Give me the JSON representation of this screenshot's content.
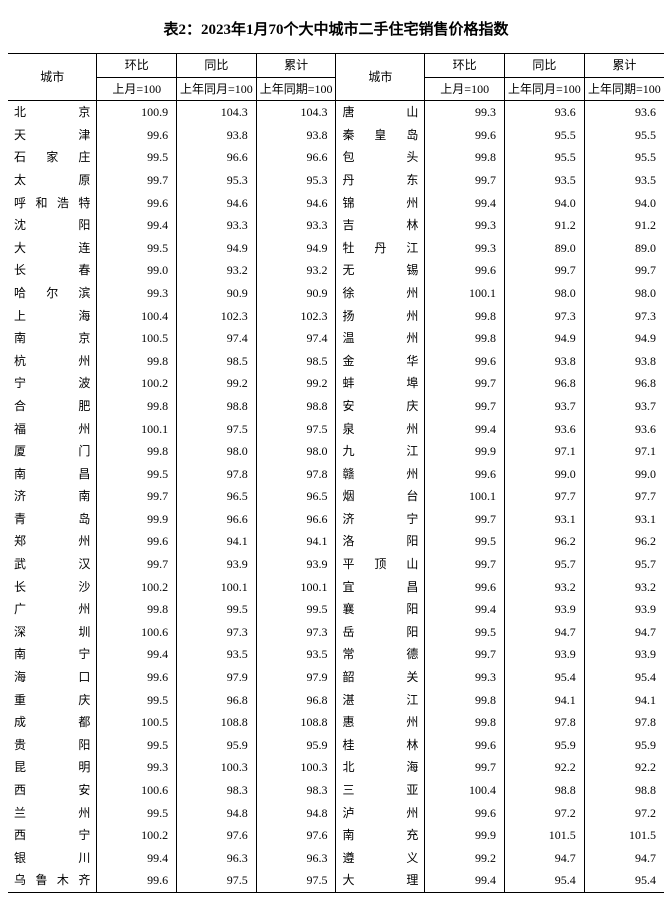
{
  "title": "表2：2023年1月70个大中城市二手住宅销售价格指数",
  "headers": {
    "city": "城市",
    "mom": "环比",
    "yoy": "同比",
    "cum": "累计",
    "mom_sub": "上月=100",
    "yoy_sub": "上年同月=100",
    "cum_sub": "上年同期=100"
  },
  "left": [
    {
      "c": "北　京",
      "m": "100.9",
      "y": "104.3",
      "u": "104.3"
    },
    {
      "c": "天　津",
      "m": "99.6",
      "y": "93.8",
      "u": "93.8"
    },
    {
      "c": "石家庄",
      "m": "99.5",
      "y": "96.6",
      "u": "96.6"
    },
    {
      "c": "太　原",
      "m": "99.7",
      "y": "95.3",
      "u": "95.3"
    },
    {
      "c": "呼和浩特",
      "m": "99.6",
      "y": "94.6",
      "u": "94.6"
    },
    {
      "c": "沈　阳",
      "m": "99.4",
      "y": "93.3",
      "u": "93.3"
    },
    {
      "c": "大　连",
      "m": "99.5",
      "y": "94.9",
      "u": "94.9"
    },
    {
      "c": "长　春",
      "m": "99.0",
      "y": "93.2",
      "u": "93.2"
    },
    {
      "c": "哈尔滨",
      "m": "99.3",
      "y": "90.9",
      "u": "90.9"
    },
    {
      "c": "上　海",
      "m": "100.4",
      "y": "102.3",
      "u": "102.3"
    },
    {
      "c": "南　京",
      "m": "100.5",
      "y": "97.4",
      "u": "97.4"
    },
    {
      "c": "杭　州",
      "m": "99.8",
      "y": "98.5",
      "u": "98.5"
    },
    {
      "c": "宁　波",
      "m": "100.2",
      "y": "99.2",
      "u": "99.2"
    },
    {
      "c": "合　肥",
      "m": "99.8",
      "y": "98.8",
      "u": "98.8"
    },
    {
      "c": "福　州",
      "m": "100.1",
      "y": "97.5",
      "u": "97.5"
    },
    {
      "c": "厦　门",
      "m": "99.8",
      "y": "98.0",
      "u": "98.0"
    },
    {
      "c": "南　昌",
      "m": "99.5",
      "y": "97.8",
      "u": "97.8"
    },
    {
      "c": "济　南",
      "m": "99.7",
      "y": "96.5",
      "u": "96.5"
    },
    {
      "c": "青　岛",
      "m": "99.9",
      "y": "96.6",
      "u": "96.6"
    },
    {
      "c": "郑　州",
      "m": "99.6",
      "y": "94.1",
      "u": "94.1"
    },
    {
      "c": "武　汉",
      "m": "99.7",
      "y": "93.9",
      "u": "93.9"
    },
    {
      "c": "长　沙",
      "m": "100.2",
      "y": "100.1",
      "u": "100.1"
    },
    {
      "c": "广　州",
      "m": "99.8",
      "y": "99.5",
      "u": "99.5"
    },
    {
      "c": "深　圳",
      "m": "100.6",
      "y": "97.3",
      "u": "97.3"
    },
    {
      "c": "南　宁",
      "m": "99.4",
      "y": "93.5",
      "u": "93.5"
    },
    {
      "c": "海　口",
      "m": "99.6",
      "y": "97.9",
      "u": "97.9"
    },
    {
      "c": "重　庆",
      "m": "99.5",
      "y": "96.8",
      "u": "96.8"
    },
    {
      "c": "成　都",
      "m": "100.5",
      "y": "108.8",
      "u": "108.8"
    },
    {
      "c": "贵　阳",
      "m": "99.5",
      "y": "95.9",
      "u": "95.9"
    },
    {
      "c": "昆　明",
      "m": "99.3",
      "y": "100.3",
      "u": "100.3"
    },
    {
      "c": "西　安",
      "m": "100.6",
      "y": "98.3",
      "u": "98.3"
    },
    {
      "c": "兰　州",
      "m": "99.5",
      "y": "94.8",
      "u": "94.8"
    },
    {
      "c": "西　宁",
      "m": "100.2",
      "y": "97.6",
      "u": "97.6"
    },
    {
      "c": "银　川",
      "m": "99.4",
      "y": "96.3",
      "u": "96.3"
    },
    {
      "c": "乌鲁木齐",
      "m": "99.6",
      "y": "97.5",
      "u": "97.5"
    }
  ],
  "right": [
    {
      "c": "唐　山",
      "m": "99.3",
      "y": "93.6",
      "u": "93.6"
    },
    {
      "c": "秦皇岛",
      "m": "99.6",
      "y": "95.5",
      "u": "95.5"
    },
    {
      "c": "包　头",
      "m": "99.8",
      "y": "95.5",
      "u": "95.5"
    },
    {
      "c": "丹　东",
      "m": "99.7",
      "y": "93.5",
      "u": "93.5"
    },
    {
      "c": "锦　州",
      "m": "99.4",
      "y": "94.0",
      "u": "94.0"
    },
    {
      "c": "吉　林",
      "m": "99.3",
      "y": "91.2",
      "u": "91.2"
    },
    {
      "c": "牡丹江",
      "m": "99.3",
      "y": "89.0",
      "u": "89.0"
    },
    {
      "c": "无　锡",
      "m": "99.6",
      "y": "99.7",
      "u": "99.7"
    },
    {
      "c": "徐　州",
      "m": "100.1",
      "y": "98.0",
      "u": "98.0"
    },
    {
      "c": "扬　州",
      "m": "99.8",
      "y": "97.3",
      "u": "97.3"
    },
    {
      "c": "温　州",
      "m": "99.8",
      "y": "94.9",
      "u": "94.9"
    },
    {
      "c": "金　华",
      "m": "99.6",
      "y": "93.8",
      "u": "93.8"
    },
    {
      "c": "蚌　埠",
      "m": "99.7",
      "y": "96.8",
      "u": "96.8"
    },
    {
      "c": "安　庆",
      "m": "99.7",
      "y": "93.7",
      "u": "93.7"
    },
    {
      "c": "泉　州",
      "m": "99.4",
      "y": "93.6",
      "u": "93.6"
    },
    {
      "c": "九　江",
      "m": "99.9",
      "y": "97.1",
      "u": "97.1"
    },
    {
      "c": "赣　州",
      "m": "99.6",
      "y": "99.0",
      "u": "99.0"
    },
    {
      "c": "烟　台",
      "m": "100.1",
      "y": "97.7",
      "u": "97.7"
    },
    {
      "c": "济　宁",
      "m": "99.7",
      "y": "93.1",
      "u": "93.1"
    },
    {
      "c": "洛　阳",
      "m": "99.5",
      "y": "96.2",
      "u": "96.2"
    },
    {
      "c": "平顶山",
      "m": "99.7",
      "y": "95.7",
      "u": "95.7"
    },
    {
      "c": "宜　昌",
      "m": "99.6",
      "y": "93.2",
      "u": "93.2"
    },
    {
      "c": "襄　阳",
      "m": "99.4",
      "y": "93.9",
      "u": "93.9"
    },
    {
      "c": "岳　阳",
      "m": "99.5",
      "y": "94.7",
      "u": "94.7"
    },
    {
      "c": "常　德",
      "m": "99.7",
      "y": "93.9",
      "u": "93.9"
    },
    {
      "c": "韶　关",
      "m": "99.3",
      "y": "95.4",
      "u": "95.4"
    },
    {
      "c": "湛　江",
      "m": "99.8",
      "y": "94.1",
      "u": "94.1"
    },
    {
      "c": "惠　州",
      "m": "99.8",
      "y": "97.8",
      "u": "97.8"
    },
    {
      "c": "桂　林",
      "m": "99.6",
      "y": "95.9",
      "u": "95.9"
    },
    {
      "c": "北　海",
      "m": "99.7",
      "y": "92.2",
      "u": "92.2"
    },
    {
      "c": "三　亚",
      "m": "100.4",
      "y": "98.8",
      "u": "98.8"
    },
    {
      "c": "泸　州",
      "m": "99.6",
      "y": "97.2",
      "u": "97.2"
    },
    {
      "c": "南　充",
      "m": "99.9",
      "y": "101.5",
      "u": "101.5"
    },
    {
      "c": "遵　义",
      "m": "99.2",
      "y": "94.7",
      "u": "94.7"
    },
    {
      "c": "大　理",
      "m": "99.4",
      "y": "95.4",
      "u": "95.4"
    }
  ]
}
